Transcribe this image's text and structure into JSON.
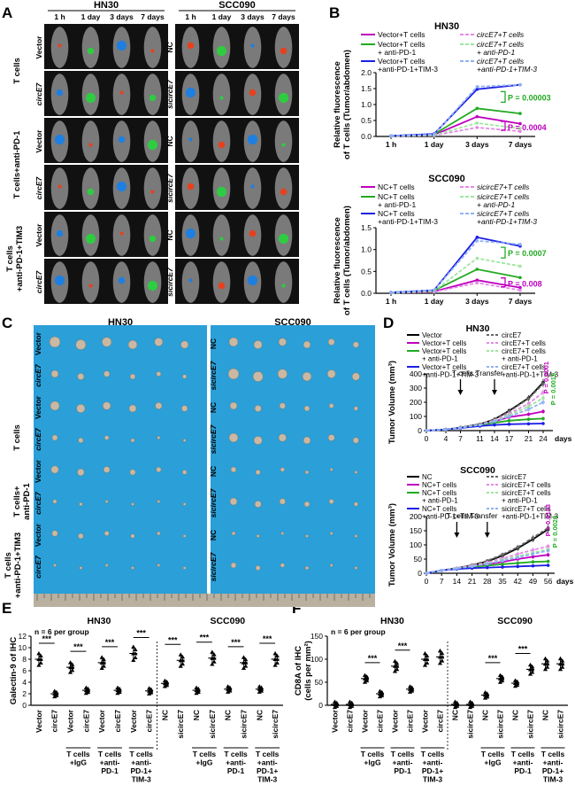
{
  "panels": {
    "A": {
      "letter": "A",
      "groups": [
        {
          "title": "HN30",
          "times": [
            "1 h",
            "1 day",
            "3 days",
            "7 days"
          ],
          "rows": [
            "Vector",
            "circE7",
            "Vector",
            "circE7",
            "Vector",
            "circE7"
          ]
        },
        {
          "title": "SCC090",
          "times": [
            "1 h",
            "1 day",
            "3 days",
            "7 days"
          ],
          "rows": [
            "NC",
            "sicircE7",
            "NC",
            "sicircE7",
            "NC",
            "sicircE7"
          ]
        }
      ],
      "row_groups": [
        "T cells",
        "T cells+anti-PD-1",
        "T cells\n+anti-PD-1+TIM3"
      ]
    },
    "B": {
      "letter": "B",
      "charts": [
        {
          "title": "HN30",
          "ylabel": [
            "Relative fluorescence",
            "of T cells (Tumor/abdomen)"
          ],
          "legend": [
            "Vector+T cells",
            "circE7+T cells",
            "Vector+T cells\n+ anti-PD-1",
            "circE7+T cells\n+ anti-PD-1",
            "Vector+T cells\n+anti-PD-1+TIM-3",
            "circE7+T cells\n+anti-PD-1+TIM-3"
          ],
          "pvals": [
            "P = 0.00003",
            "P = 0.0004"
          ]
        },
        {
          "title": "SCC090",
          "ylabel": [
            "Relative fluorescence",
            "of T cells (Tumor/abdomen)"
          ],
          "legend": [
            "NC+T cells",
            "sicircE7+T cells",
            "NC+T cells\n+ anti-PD-1",
            "sicircE7+T cells\n+ anti-PD-1",
            "NC+T cells\n+anti-PD-1+TIM-3",
            "sicircE7+T cells\n+anti-PD-1+TIM-3"
          ],
          "pvals": [
            "P = 0.0007",
            "P = 0.008"
          ]
        }
      ]
    },
    "C": {
      "letter": "C",
      "groups": [
        {
          "title": "HN30",
          "rows": [
            "Vector",
            "circE7",
            "Vector",
            "circE7",
            "Vector",
            "circE7",
            "Vector",
            "circE7"
          ]
        },
        {
          "title": "SCC090",
          "rows": [
            "NC",
            "sicircE7",
            "NC",
            "sicircE7",
            "NC",
            "sicircE7",
            "NC",
            "sicircE7"
          ]
        }
      ],
      "row_groups": [
        "T cells",
        "T cells+\nanti-PD-1",
        "T cells\n+anti-PD-1+TIM3"
      ]
    },
    "D": {
      "letter": "D",
      "charts": [
        {
          "title": "HN30",
          "ylabel": "Tumor Volume (mm³)",
          "legend": [
            "Vector",
            "circE7",
            "Vector+T cells",
            "circE7+T cells",
            "Vector+T cells\n+ anti-PD-1",
            "circE7+T cells\n+ anti-PD-1",
            "Vector+T cells\n+anti-PD-1+TIM-3",
            "circE7+T cells\n+anti-PD-1+TIM-3"
          ],
          "annotation": "T cells Transfer",
          "xunit": "days",
          "pvals": [
            "P = 0.0001",
            "P = 0.0019"
          ]
        },
        {
          "title": "SCC090",
          "ylabel": "Tumor Volume (mm³)",
          "legend": [
            "NC",
            "sicircE7",
            "NC+T cells",
            "sicircE7+T cells",
            "NC+T cells\n+ anti-PD-1",
            "sicircE7+T cells\n+ anti-PD-1",
            "NC+T cells\n+anti-PD-1+TIM-3",
            "sicircE7+T cells\n+anti-PD-1+TIM-3"
          ],
          "annotation": "T cells Transfer",
          "xunit": "days",
          "pvals": [
            "P = 0.0133",
            "P = 0.0029"
          ]
        }
      ]
    },
    "E": {
      "letter": "E",
      "ylabel": "Galectin-9 of IHC",
      "note": "n = 6 per group",
      "groups": [
        "HN30",
        "SCC090"
      ],
      "sig": "***",
      "under_labels": [
        "T cells\n+IgG",
        "T cells\n+anti-\nPD-1",
        "T cells\n+anti-\nPD-1+\nTIM-3",
        "T cells\n+IgG",
        "T cells\n+anti-\nPD-1",
        "T cells\n+anti-\nPD-1+\nTIM-3"
      ]
    },
    "F": {
      "letter": "F",
      "ylabel": [
        "CD8A of IHC",
        "(cells per mm²)"
      ],
      "note": "n = 6 per group",
      "groups": [
        "HN30",
        "SCC090"
      ],
      "sig": "***",
      "under_labels": [
        "T cells\n+IgG",
        "T cells\n+anti-\nPD-1",
        "T cells\n+anti-\nPD-1+\nTIM-3",
        "T cells\n+IgG",
        "T cells\n+anti-\nPD-1",
        "T cells\n+anti-\nPD-1+\nTIM-3"
      ]
    }
  },
  "colors": {
    "black": "#000000",
    "purple": "#bf00bf",
    "green": "#22aa22",
    "blue": "#1e1ee6",
    "purple_light": "#e68ae6",
    "green_light": "#9ee69e",
    "blue_light": "#8fb2f2",
    "pval_green": "#22aa22",
    "pval_purple": "#bf00bf",
    "photo_bg": "#111111",
    "tumor_bg": "#2a9fd8"
  },
  "chart_data": [
    {
      "type": "line",
      "title": "HN30",
      "xlabel": "",
      "ylabel": "Relative fluorescence of T cells (Tumor/abdomen)",
      "categories": [
        "1 h",
        "1 day",
        "3 days",
        "7 days"
      ],
      "ylim": [
        0,
        2.0
      ],
      "yticks": [
        0,
        0.5,
        1.0,
        1.5,
        2.0
      ],
      "series": [
        {
          "name": "Vector+T cells",
          "values": [
            0.02,
            0.05,
            0.62,
            0.4
          ],
          "color": "#bf00bf",
          "dashed": false
        },
        {
          "name": "circE7+T cells",
          "values": [
            0.01,
            0.03,
            0.28,
            0.16
          ],
          "color": "#e68ae6",
          "dashed": true
        },
        {
          "name": "Vector+T cells + anti-PD-1",
          "values": [
            0.02,
            0.07,
            0.88,
            0.72
          ],
          "color": "#22aa22",
          "dashed": false
        },
        {
          "name": "circE7+T cells + anti-PD-1",
          "values": [
            0.01,
            0.04,
            0.42,
            0.25
          ],
          "color": "#9ee69e",
          "dashed": true
        },
        {
          "name": "Vector+T cells +anti-PD-1+TIM-3",
          "values": [
            0.02,
            0.08,
            1.48,
            1.62
          ],
          "color": "#1e1ee6",
          "dashed": false
        },
        {
          "name": "circE7+T cells +anti-PD-1+TIM-3",
          "values": [
            0.02,
            0.06,
            1.56,
            1.62
          ],
          "color": "#8fb2f2",
          "dashed": true
        }
      ]
    },
    {
      "type": "line",
      "title": "SCC090",
      "xlabel": "",
      "ylabel": "Relative fluorescence of T cells (Tumor/abdomen)",
      "categories": [
        "1 h",
        "1 day",
        "3 days",
        "7 days"
      ],
      "ylim": [
        0,
        1.5
      ],
      "yticks": [
        0,
        0.5,
        1.0,
        1.5
      ],
      "series": [
        {
          "name": "NC+T cells",
          "values": [
            0.02,
            0.04,
            0.3,
            0.13
          ],
          "color": "#bf00bf",
          "dashed": false
        },
        {
          "name": "sicircE7+T cells",
          "values": [
            0.01,
            0.03,
            0.24,
            0.07
          ],
          "color": "#e68ae6",
          "dashed": true
        },
        {
          "name": "NC+T cells + anti-PD-1",
          "values": [
            0.02,
            0.06,
            0.55,
            0.36
          ],
          "color": "#22aa22",
          "dashed": false
        },
        {
          "name": "sicircE7+T cells + anti-PD-1",
          "values": [
            0.01,
            0.05,
            0.8,
            0.62
          ],
          "color": "#9ee69e",
          "dashed": true
        },
        {
          "name": "NC+T cells +anti-PD-1+TIM-3",
          "values": [
            0.02,
            0.07,
            1.28,
            1.08
          ],
          "color": "#1e1ee6",
          "dashed": false
        },
        {
          "name": "sicircE7+T cells +anti-PD-1+TIM-3",
          "values": [
            0.02,
            0.07,
            1.2,
            1.12
          ],
          "color": "#8fb2f2",
          "dashed": true
        }
      ]
    },
    {
      "type": "line",
      "title": "HN30",
      "xlabel": "days",
      "ylabel": "Tumor Volume (mm3)",
      "x": [
        0,
        4,
        7,
        11,
        14,
        17,
        21,
        24
      ],
      "ylim": [
        0,
        400
      ],
      "yticks": [
        0,
        100,
        200,
        300,
        400
      ],
      "series": [
        {
          "name": "Vector",
          "values": [
            0,
            8,
            22,
            45,
            80,
            140,
            230,
            340
          ],
          "color": "#000000",
          "dashed": false
        },
        {
          "name": "circE7",
          "values": [
            0,
            8,
            22,
            44,
            78,
            135,
            225,
            330
          ],
          "color": "#666666",
          "dashed": true
        },
        {
          "name": "Vector+T cells",
          "values": [
            0,
            8,
            20,
            40,
            65,
            95,
            115,
            135
          ],
          "color": "#bf00bf",
          "dashed": false
        },
        {
          "name": "circE7+T cells",
          "values": [
            0,
            8,
            20,
            42,
            72,
            120,
            190,
            270
          ],
          "color": "#e68ae6",
          "dashed": true
        },
        {
          "name": "Vector+T cells + anti-PD-1",
          "values": [
            0,
            8,
            20,
            38,
            55,
            70,
            80,
            85
          ],
          "color": "#22aa22",
          "dashed": false
        },
        {
          "name": "circE7+T cells + anti-PD-1",
          "values": [
            0,
            8,
            20,
            40,
            68,
            110,
            170,
            230
          ],
          "color": "#9ee69e",
          "dashed": true
        },
        {
          "name": "Vector+T cells +anti-PD-1+TIM-3",
          "values": [
            0,
            8,
            18,
            32,
            40,
            45,
            48,
            50
          ],
          "color": "#1e1ee6",
          "dashed": false
        },
        {
          "name": "circE7+T cells +anti-PD-1+TIM-3",
          "values": [
            0,
            8,
            20,
            40,
            65,
            100,
            150,
            200
          ],
          "color": "#8fb2f2",
          "dashed": true
        }
      ]
    },
    {
      "type": "line",
      "title": "SCC090",
      "xlabel": "days",
      "ylabel": "Tumor Volume (mm3)",
      "x": [
        0,
        7,
        14,
        21,
        28,
        35,
        42,
        49,
        56
      ],
      "ylim": [
        0,
        200
      ],
      "yticks": [
        0,
        50,
        100,
        150,
        200
      ],
      "series": [
        {
          "name": "NC",
          "values": [
            0,
            10,
            18,
            28,
            42,
            62,
            88,
            120,
            155
          ],
          "color": "#000000",
          "dashed": false
        },
        {
          "name": "sicircE7",
          "values": [
            0,
            10,
            18,
            29,
            44,
            66,
            92,
            125,
            160
          ],
          "color": "#666666",
          "dashed": true
        },
        {
          "name": "NC+T cells",
          "values": [
            0,
            10,
            17,
            25,
            32,
            40,
            50,
            58,
            65
          ],
          "color": "#bf00bf",
          "dashed": false
        },
        {
          "name": "sicircE7+T cells",
          "values": [
            0,
            10,
            18,
            27,
            38,
            52,
            68,
            82,
            95
          ],
          "color": "#e68ae6",
          "dashed": true
        },
        {
          "name": "NC+T cells + anti-PD-1",
          "values": [
            0,
            10,
            16,
            22,
            27,
            32,
            36,
            40,
            42
          ],
          "color": "#22aa22",
          "dashed": false
        },
        {
          "name": "sicircE7+T cells + anti-PD-1",
          "values": [
            0,
            10,
            17,
            25,
            35,
            47,
            60,
            72,
            85
          ],
          "color": "#9ee69e",
          "dashed": true
        },
        {
          "name": "NC+T cells +anti-PD-1+TIM-3",
          "values": [
            0,
            10,
            15,
            18,
            20,
            22,
            24,
            26,
            28
          ],
          "color": "#1e1ee6",
          "dashed": false
        },
        {
          "name": "sicircE7+T cells +anti-PD-1+TIM-3",
          "values": [
            0,
            10,
            17,
            24,
            33,
            44,
            56,
            68,
            80
          ],
          "color": "#8fb2f2",
          "dashed": true
        }
      ]
    },
    {
      "type": "scatter",
      "title": "HN30 / SCC090",
      "ylabel": "Galectin-9 of IHC",
      "ylim": [
        0,
        12
      ],
      "yticks": [
        0,
        2,
        4,
        6,
        8,
        10,
        12
      ],
      "categories": [
        "Vector",
        "circE7",
        "Vector",
        "circE7",
        "Vector",
        "circE7",
        "Vector",
        "circE7",
        "NC",
        "sicircE7",
        "NC",
        "sicircE7",
        "NC",
        "sicircE7",
        "NC",
        "sicircE7"
      ],
      "means": [
        8.0,
        2.0,
        6.6,
        2.6,
        7.4,
        2.6,
        9.0,
        2.5,
        3.8,
        7.8,
        2.6,
        8.2,
        2.8,
        7.4,
        2.8,
        8.0
      ],
      "significance_pairs": [
        [
          0,
          1
        ],
        [
          2,
          3
        ],
        [
          4,
          5
        ],
        [
          6,
          7
        ],
        [
          8,
          9
        ],
        [
          10,
          11
        ],
        [
          12,
          13
        ],
        [
          14,
          15
        ]
      ]
    },
    {
      "type": "scatter",
      "title": "HN30 / SCC090",
      "ylabel": "CD8A of IHC (cells per mm2)",
      "ylim": [
        0,
        150
      ],
      "yticks": [
        0,
        50,
        100,
        150
      ],
      "categories": [
        "Vector",
        "circE7",
        "Vector",
        "circE7",
        "Vector",
        "circE7",
        "Vector",
        "circE7",
        "NC",
        "sicircE7",
        "NC",
        "sicircE7",
        "NC",
        "sicircE7",
        "NC",
        "sicircE7"
      ],
      "means": [
        2,
        2,
        58,
        25,
        85,
        35,
        100,
        105,
        2,
        2,
        22,
        58,
        48,
        78,
        90,
        90
      ],
      "significance_pairs": [
        [
          2,
          3
        ],
        [
          4,
          5
        ],
        [
          10,
          11
        ],
        [
          12,
          13
        ]
      ]
    }
  ]
}
